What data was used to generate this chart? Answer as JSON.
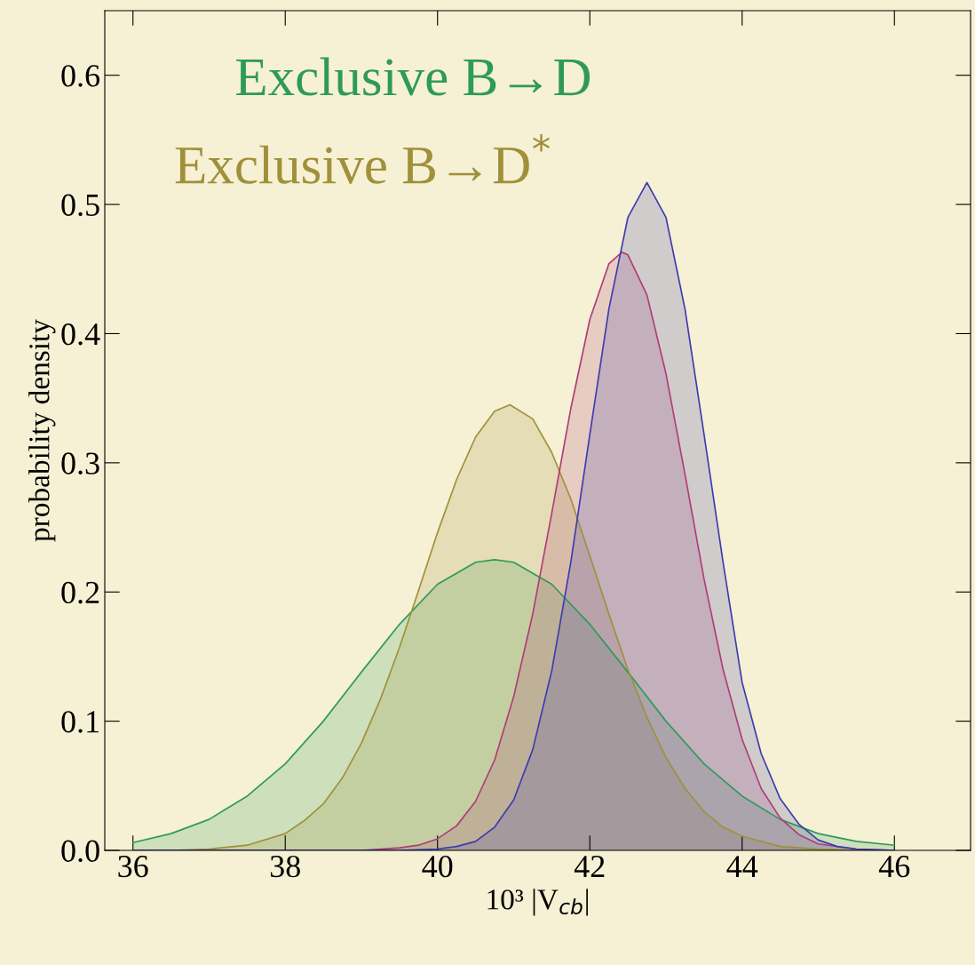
{
  "chart_data": {
    "type": "area",
    "xlabel": "10³ |V$_{cb}$|",
    "ylabel": "probability density",
    "series": [
      {
        "name": "Exclusive B→D",
        "color": "#2e9a5a",
        "x": [
          36,
          36.5,
          37,
          37.5,
          38,
          38.5,
          39,
          39.5,
          40,
          40.5,
          40.75,
          41,
          41.5,
          42,
          42.5,
          43,
          43.5,
          44,
          44.5,
          45,
          45.5,
          46
        ],
        "values": [
          0.006,
          0.013,
          0.024,
          0.042,
          0.067,
          0.1,
          0.138,
          0.175,
          0.206,
          0.223,
          0.225,
          0.223,
          0.206,
          0.175,
          0.138,
          0.1,
          0.067,
          0.042,
          0.024,
          0.013,
          0.007,
          0.004
        ]
      },
      {
        "name": "Exclusive B→D$^{*}$",
        "color": "#a0903a",
        "x": [
          36,
          36.5,
          37,
          37.5,
          38,
          38.25,
          38.5,
          38.75,
          39,
          39.25,
          39.5,
          39.75,
          40,
          40.25,
          40.5,
          40.75,
          40.95,
          41.25,
          41.5,
          41.75,
          42,
          42.25,
          42.5,
          42.75,
          43,
          43.25,
          43.5,
          43.75,
          44,
          44.5,
          45,
          45.5,
          46
        ],
        "values": [
          0,
          0,
          0.001,
          0.004,
          0.013,
          0.023,
          0.036,
          0.056,
          0.083,
          0.117,
          0.157,
          0.201,
          0.246,
          0.287,
          0.32,
          0.34,
          0.345,
          0.334,
          0.308,
          0.272,
          0.228,
          0.183,
          0.14,
          0.103,
          0.072,
          0.048,
          0.03,
          0.018,
          0.011,
          0.003,
          0.001,
          0,
          0
        ]
      },
      {
        "color": "#b03c78",
        "x": [
          36,
          38,
          39,
          39.5,
          39.75,
          40,
          40.25,
          40.5,
          40.75,
          41,
          41.25,
          41.5,
          41.75,
          42,
          42.25,
          42.42,
          42.5,
          42.75,
          43,
          43.25,
          43.5,
          43.75,
          44,
          44.25,
          44.5,
          44.75,
          45,
          45.5,
          46
        ],
        "values": [
          0,
          0,
          0,
          0.002,
          0.004,
          0.009,
          0.019,
          0.038,
          0.07,
          0.119,
          0.183,
          0.261,
          0.342,
          0.411,
          0.454,
          0.463,
          0.461,
          0.43,
          0.369,
          0.291,
          0.21,
          0.14,
          0.086,
          0.048,
          0.025,
          0.012,
          0.005,
          0.001,
          0
        ]
      },
      {
        "color": "#3c3cb0",
        "x": [
          36,
          38,
          39.5,
          40,
          40.25,
          40.5,
          40.75,
          41,
          41.25,
          41.5,
          41.75,
          42,
          42.25,
          42.5,
          42.75,
          43,
          43.25,
          43.5,
          43.75,
          44,
          44.25,
          44.5,
          44.75,
          45,
          45.25,
          45.5,
          46
        ],
        "values": [
          0,
          0,
          0,
          0.001,
          0.003,
          0.007,
          0.018,
          0.039,
          0.078,
          0.139,
          0.223,
          0.322,
          0.419,
          0.49,
          0.517,
          0.49,
          0.419,
          0.322,
          0.223,
          0.13,
          0.075,
          0.04,
          0.02,
          0.008,
          0.003,
          0.001,
          0
        ]
      }
    ],
    "xlim": [
      35.63,
      47
    ],
    "ylim": [
      0,
      0.65
    ],
    "xticks": [
      36,
      38,
      40,
      42,
      44,
      46
    ],
    "yticks": [
      {
        "value": 0,
        "label": "0.0"
      },
      {
        "value": 0.1,
        "label": "0.1"
      },
      {
        "value": 0.2,
        "label": "0.2"
      },
      {
        "value": 0.3,
        "label": "0.3"
      },
      {
        "value": 0.4,
        "label": "0.4"
      },
      {
        "value": 0.5,
        "label": "0.5"
      },
      {
        "value": 0.6,
        "label": "0.6"
      }
    ],
    "grid": false
  }
}
